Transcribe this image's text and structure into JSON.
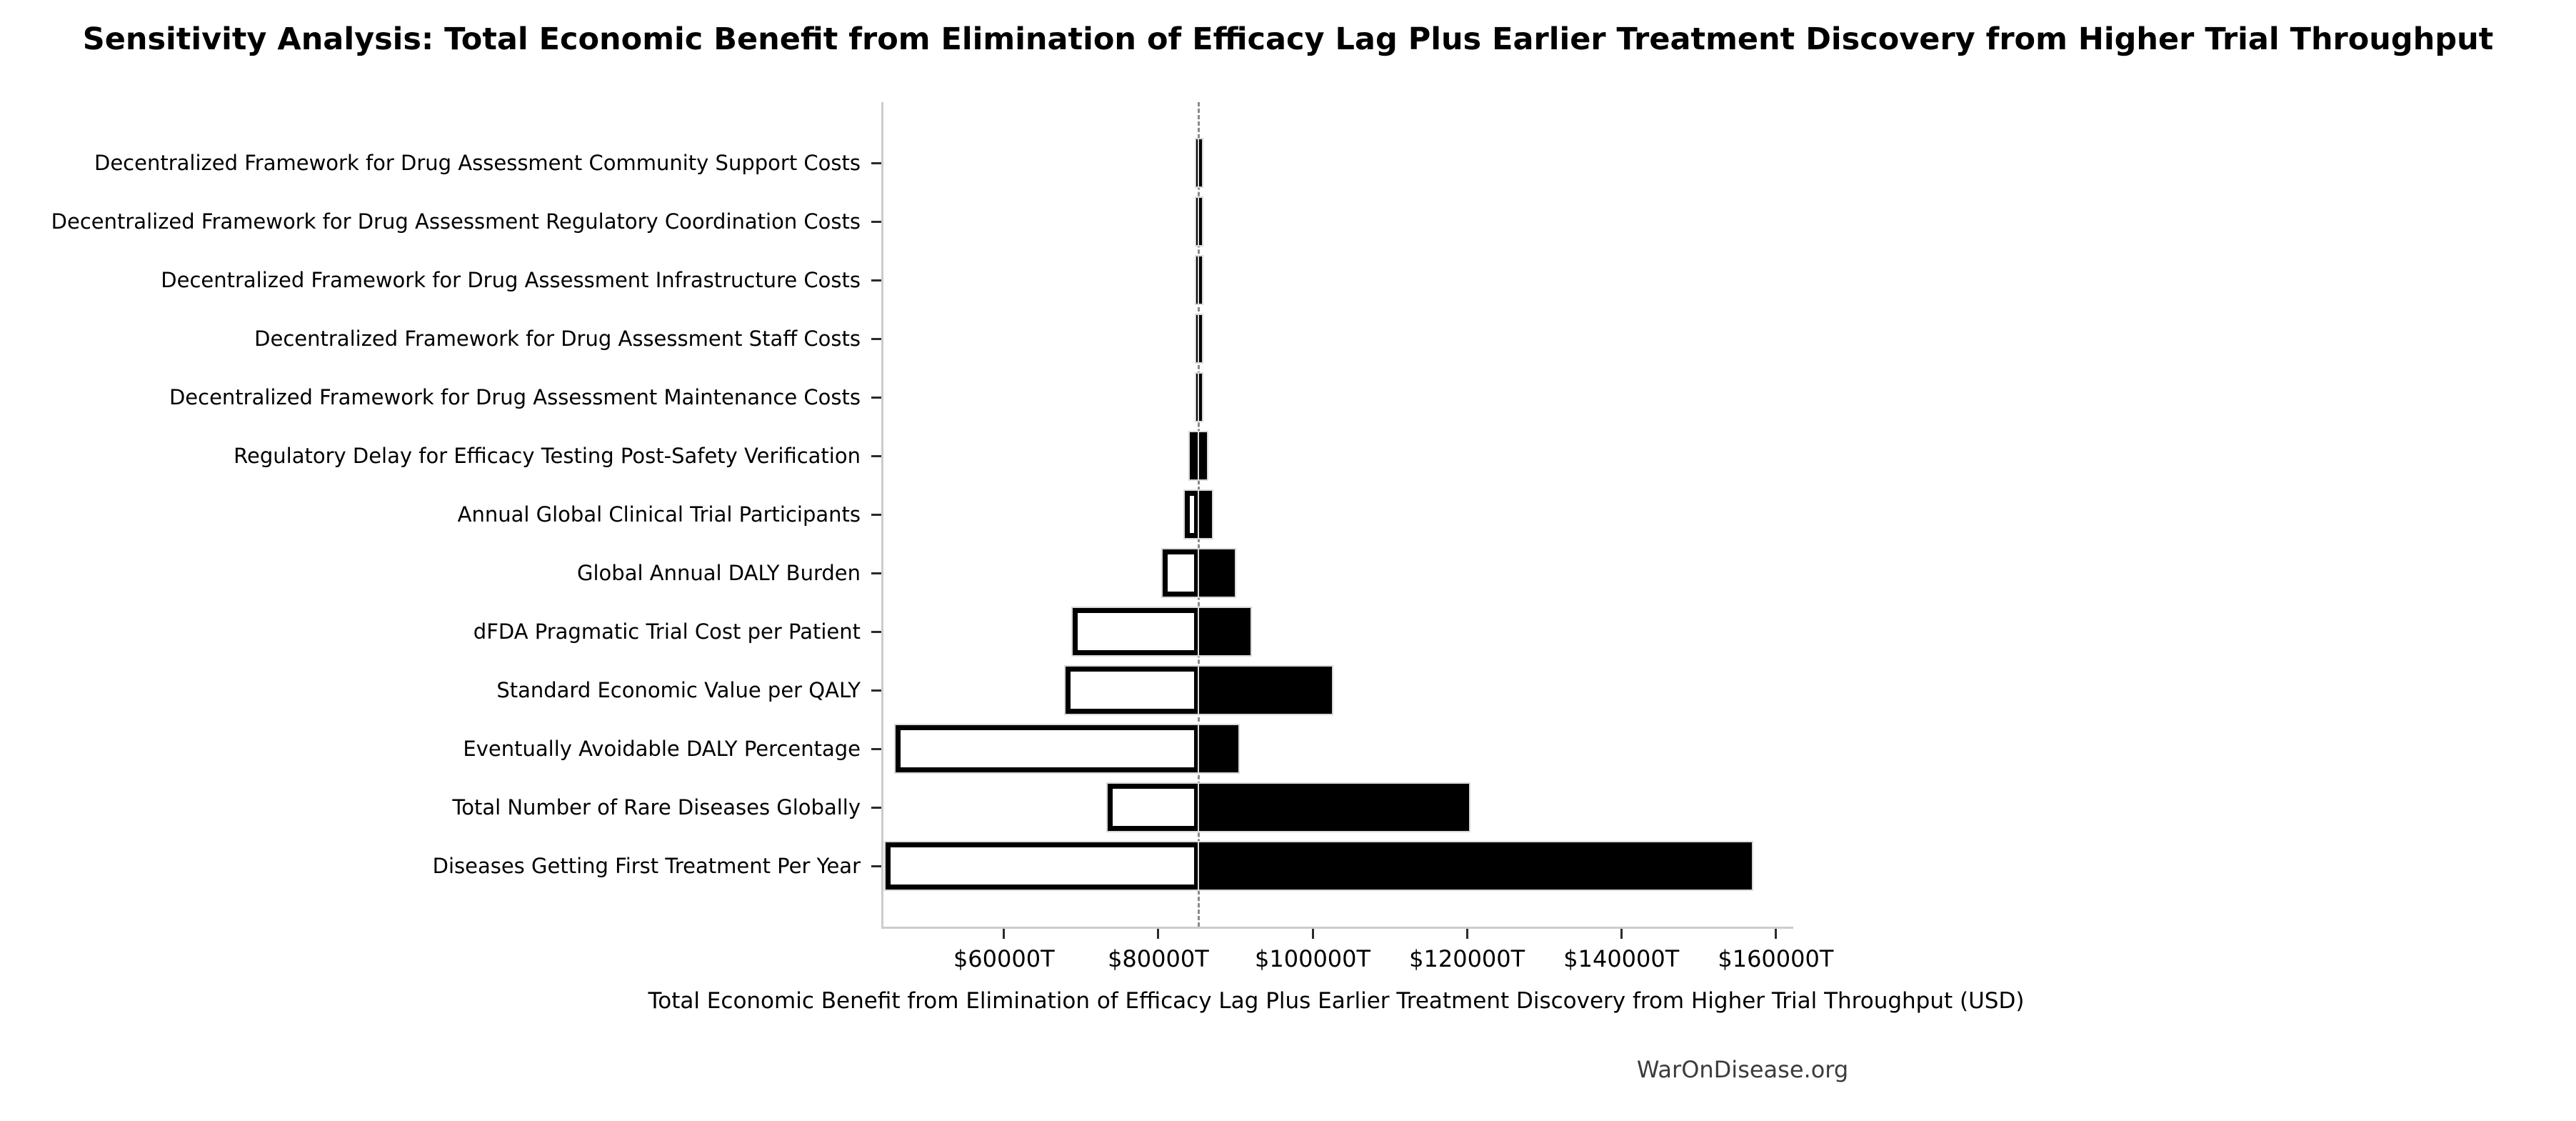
{
  "chart_data": {
    "type": "bar",
    "subtype": "tornado-sensitivity-horizontal",
    "title": "Sensitivity Analysis: Total Economic Benefit from Elimination of Efficacy Lag Plus Earlier Treatment Discovery from Higher Trial Throughput",
    "xlabel": "Total Economic Benefit from Elimination of Efficacy Lag Plus Earlier Treatment Discovery from Higher Trial Throughput (USD)",
    "footer": "WarOnDisease.org",
    "unit": "USD trillions (T)",
    "legend": "none",
    "grid": "off",
    "baseline": 84980,
    "xlim": [
      44100,
      162000
    ],
    "xticks": [
      {
        "value": 60000,
        "label": "$60000T"
      },
      {
        "value": 80000,
        "label": "$80000T"
      },
      {
        "value": 100000,
        "label": "$100000T"
      },
      {
        "value": 120000,
        "label": "$120000T"
      },
      {
        "value": 140000,
        "label": "$140000T"
      },
      {
        "value": 160000,
        "label": "$160000T"
      }
    ],
    "rows": [
      {
        "label": "Decentralized Framework for Drug Assessment Community Support Costs",
        "low": 84640,
        "high": 85380
      },
      {
        "label": "Decentralized Framework for Drug Assessment Regulatory Coordination Costs",
        "low": 84640,
        "high": 85380
      },
      {
        "label": "Decentralized Framework for Drug Assessment Infrastructure Costs",
        "low": 84640,
        "high": 85380
      },
      {
        "label": "Decentralized Framework for Drug Assessment Staff Costs",
        "low": 84640,
        "high": 85380
      },
      {
        "label": "Decentralized Framework for Drug Assessment Maintenance Costs",
        "low": 84640,
        "high": 85380
      },
      {
        "label": "Regulatory Delay for Efficacy Testing Post-Safety Verification",
        "low": 83800,
        "high": 86000
      },
      {
        "label": "Annual Global Clinical Trial Participants",
        "low": 83130,
        "high": 86700
      },
      {
        "label": "Global Annual DALY Burden",
        "low": 80280,
        "high": 89620
      },
      {
        "label": "dFDA Pragmatic Trial Cost per Patient",
        "low": 68620,
        "high": 91660
      },
      {
        "label": "Standard Economic Value per QALY",
        "low": 67700,
        "high": 102200
      },
      {
        "label": "Eventually Avoidable DALY Percentage",
        "low": 45680,
        "high": 90090
      },
      {
        "label": "Total Number of Rare Diseases Globally",
        "low": 73170,
        "high": 119980
      },
      {
        "label": "Diseases Getting First Treatment Per Year",
        "low": 44390,
        "high": 156620
      }
    ],
    "colors": {
      "low_fill": "#ffffff",
      "low_edge": "#000000",
      "high_fill": "#000000",
      "bar_outline": "#d9d9d9",
      "baseline_line": "#8a8a8a",
      "spine": "#cccccc",
      "tick": "#2b2b2b",
      "footer_text": "#3c3c3c"
    }
  }
}
